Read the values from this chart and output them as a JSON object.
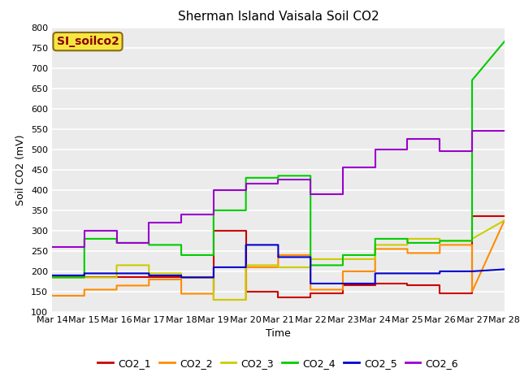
{
  "title": "Sherman Island Vaisala Soil CO2",
  "ylabel": "Soil CO2 (mV)",
  "xlabel": "Time",
  "ylim": [
    100,
    800
  ],
  "xlim": [
    0,
    14
  ],
  "xtick_labels": [
    "Mar 14",
    "Mar 15",
    "Mar 16",
    "Mar 17",
    "Mar 18",
    "Mar 19",
    "Mar 20",
    "Mar 21",
    "Mar 22",
    "Mar 23",
    "Mar 24",
    "Mar 25",
    "Mar 26",
    "Mar 27",
    "Mar 28"
  ],
  "ytick_vals": [
    100,
    150,
    200,
    250,
    300,
    350,
    400,
    450,
    500,
    550,
    600,
    650,
    700,
    750,
    800
  ],
  "annotation_text": "SI_soilco2",
  "annotation_color": "#8B0000",
  "annotation_bg": "#F5E642",
  "series": {
    "CO2_1": {
      "color": "#CC0000",
      "x": [
        0,
        4,
        4,
        5,
        5,
        5,
        5,
        6,
        6,
        7,
        7,
        8,
        8,
        9,
        9,
        10,
        10,
        11,
        11,
        12,
        12,
        13,
        13,
        14
      ],
      "y": [
        185,
        185,
        185,
        185,
        150,
        150,
        300,
        300,
        150,
        150,
        135,
        135,
        145,
        145,
        165,
        165,
        170,
        170,
        165,
        165,
        145,
        145,
        335,
        335
      ]
    },
    "CO2_2": {
      "color": "#FF8C00",
      "x": [
        0,
        1,
        1,
        2,
        2,
        3,
        3,
        4,
        4,
        5,
        5,
        6,
        6,
        7,
        7,
        8,
        8,
        9,
        9,
        10,
        10,
        11,
        11,
        12,
        12,
        13,
        13,
        14
      ],
      "y": [
        140,
        140,
        155,
        155,
        165,
        165,
        180,
        180,
        145,
        145,
        130,
        130,
        210,
        210,
        240,
        240,
        155,
        155,
        200,
        200,
        255,
        255,
        245,
        245,
        265,
        265,
        150,
        325
      ]
    },
    "CO2_3": {
      "color": "#CCCC00",
      "x": [
        0,
        1,
        1,
        2,
        2,
        3,
        3,
        4,
        4,
        5,
        5,
        6,
        6,
        7,
        7,
        8,
        8,
        9,
        9,
        10,
        10,
        11,
        11,
        12,
        12,
        13,
        13,
        14
      ],
      "y": [
        185,
        185,
        185,
        185,
        215,
        215,
        195,
        195,
        185,
        185,
        130,
        130,
        215,
        215,
        210,
        210,
        230,
        230,
        230,
        230,
        265,
        265,
        280,
        280,
        275,
        275,
        280,
        325
      ]
    },
    "CO2_4": {
      "color": "#00CC00",
      "x": [
        0,
        1,
        1,
        2,
        2,
        3,
        3,
        4,
        4,
        5,
        5,
        6,
        6,
        7,
        7,
        8,
        8,
        9,
        9,
        10,
        10,
        11,
        11,
        12,
        12,
        12,
        13,
        13,
        14
      ],
      "y": [
        185,
        185,
        280,
        280,
        270,
        270,
        265,
        265,
        240,
        240,
        350,
        350,
        430,
        430,
        435,
        435,
        215,
        215,
        240,
        240,
        280,
        280,
        270,
        270,
        275,
        275,
        275,
        670,
        765
      ]
    },
    "CO2_5": {
      "color": "#0000CC",
      "x": [
        0,
        1,
        1,
        2,
        2,
        3,
        3,
        4,
        4,
        5,
        5,
        6,
        6,
        7,
        7,
        8,
        8,
        9,
        9,
        10,
        10,
        11,
        11,
        12,
        12,
        13,
        13,
        14
      ],
      "y": [
        190,
        190,
        195,
        195,
        195,
        195,
        190,
        190,
        185,
        185,
        210,
        210,
        265,
        265,
        235,
        235,
        170,
        170,
        170,
        170,
        195,
        195,
        195,
        195,
        200,
        200,
        200,
        205
      ]
    },
    "CO2_6": {
      "color": "#9900CC",
      "x": [
        0,
        1,
        1,
        2,
        2,
        3,
        3,
        4,
        4,
        5,
        5,
        6,
        6,
        7,
        7,
        8,
        8,
        9,
        9,
        10,
        10,
        11,
        11,
        12,
        12,
        13,
        13,
        14
      ],
      "y": [
        260,
        260,
        300,
        300,
        270,
        270,
        320,
        320,
        340,
        340,
        400,
        400,
        415,
        415,
        425,
        425,
        390,
        390,
        455,
        455,
        500,
        500,
        525,
        525,
        495,
        495,
        545,
        545
      ]
    }
  },
  "legend_order": [
    "CO2_1",
    "CO2_2",
    "CO2_3",
    "CO2_4",
    "CO2_5",
    "CO2_6"
  ],
  "bg_color": "#EBEBEB",
  "fig_bg": "#FFFFFF",
  "grid_color": "#FFFFFF",
  "title_fontsize": 11,
  "axis_label_fontsize": 9,
  "tick_fontsize": 8,
  "legend_fontsize": 9,
  "linewidth": 1.5
}
